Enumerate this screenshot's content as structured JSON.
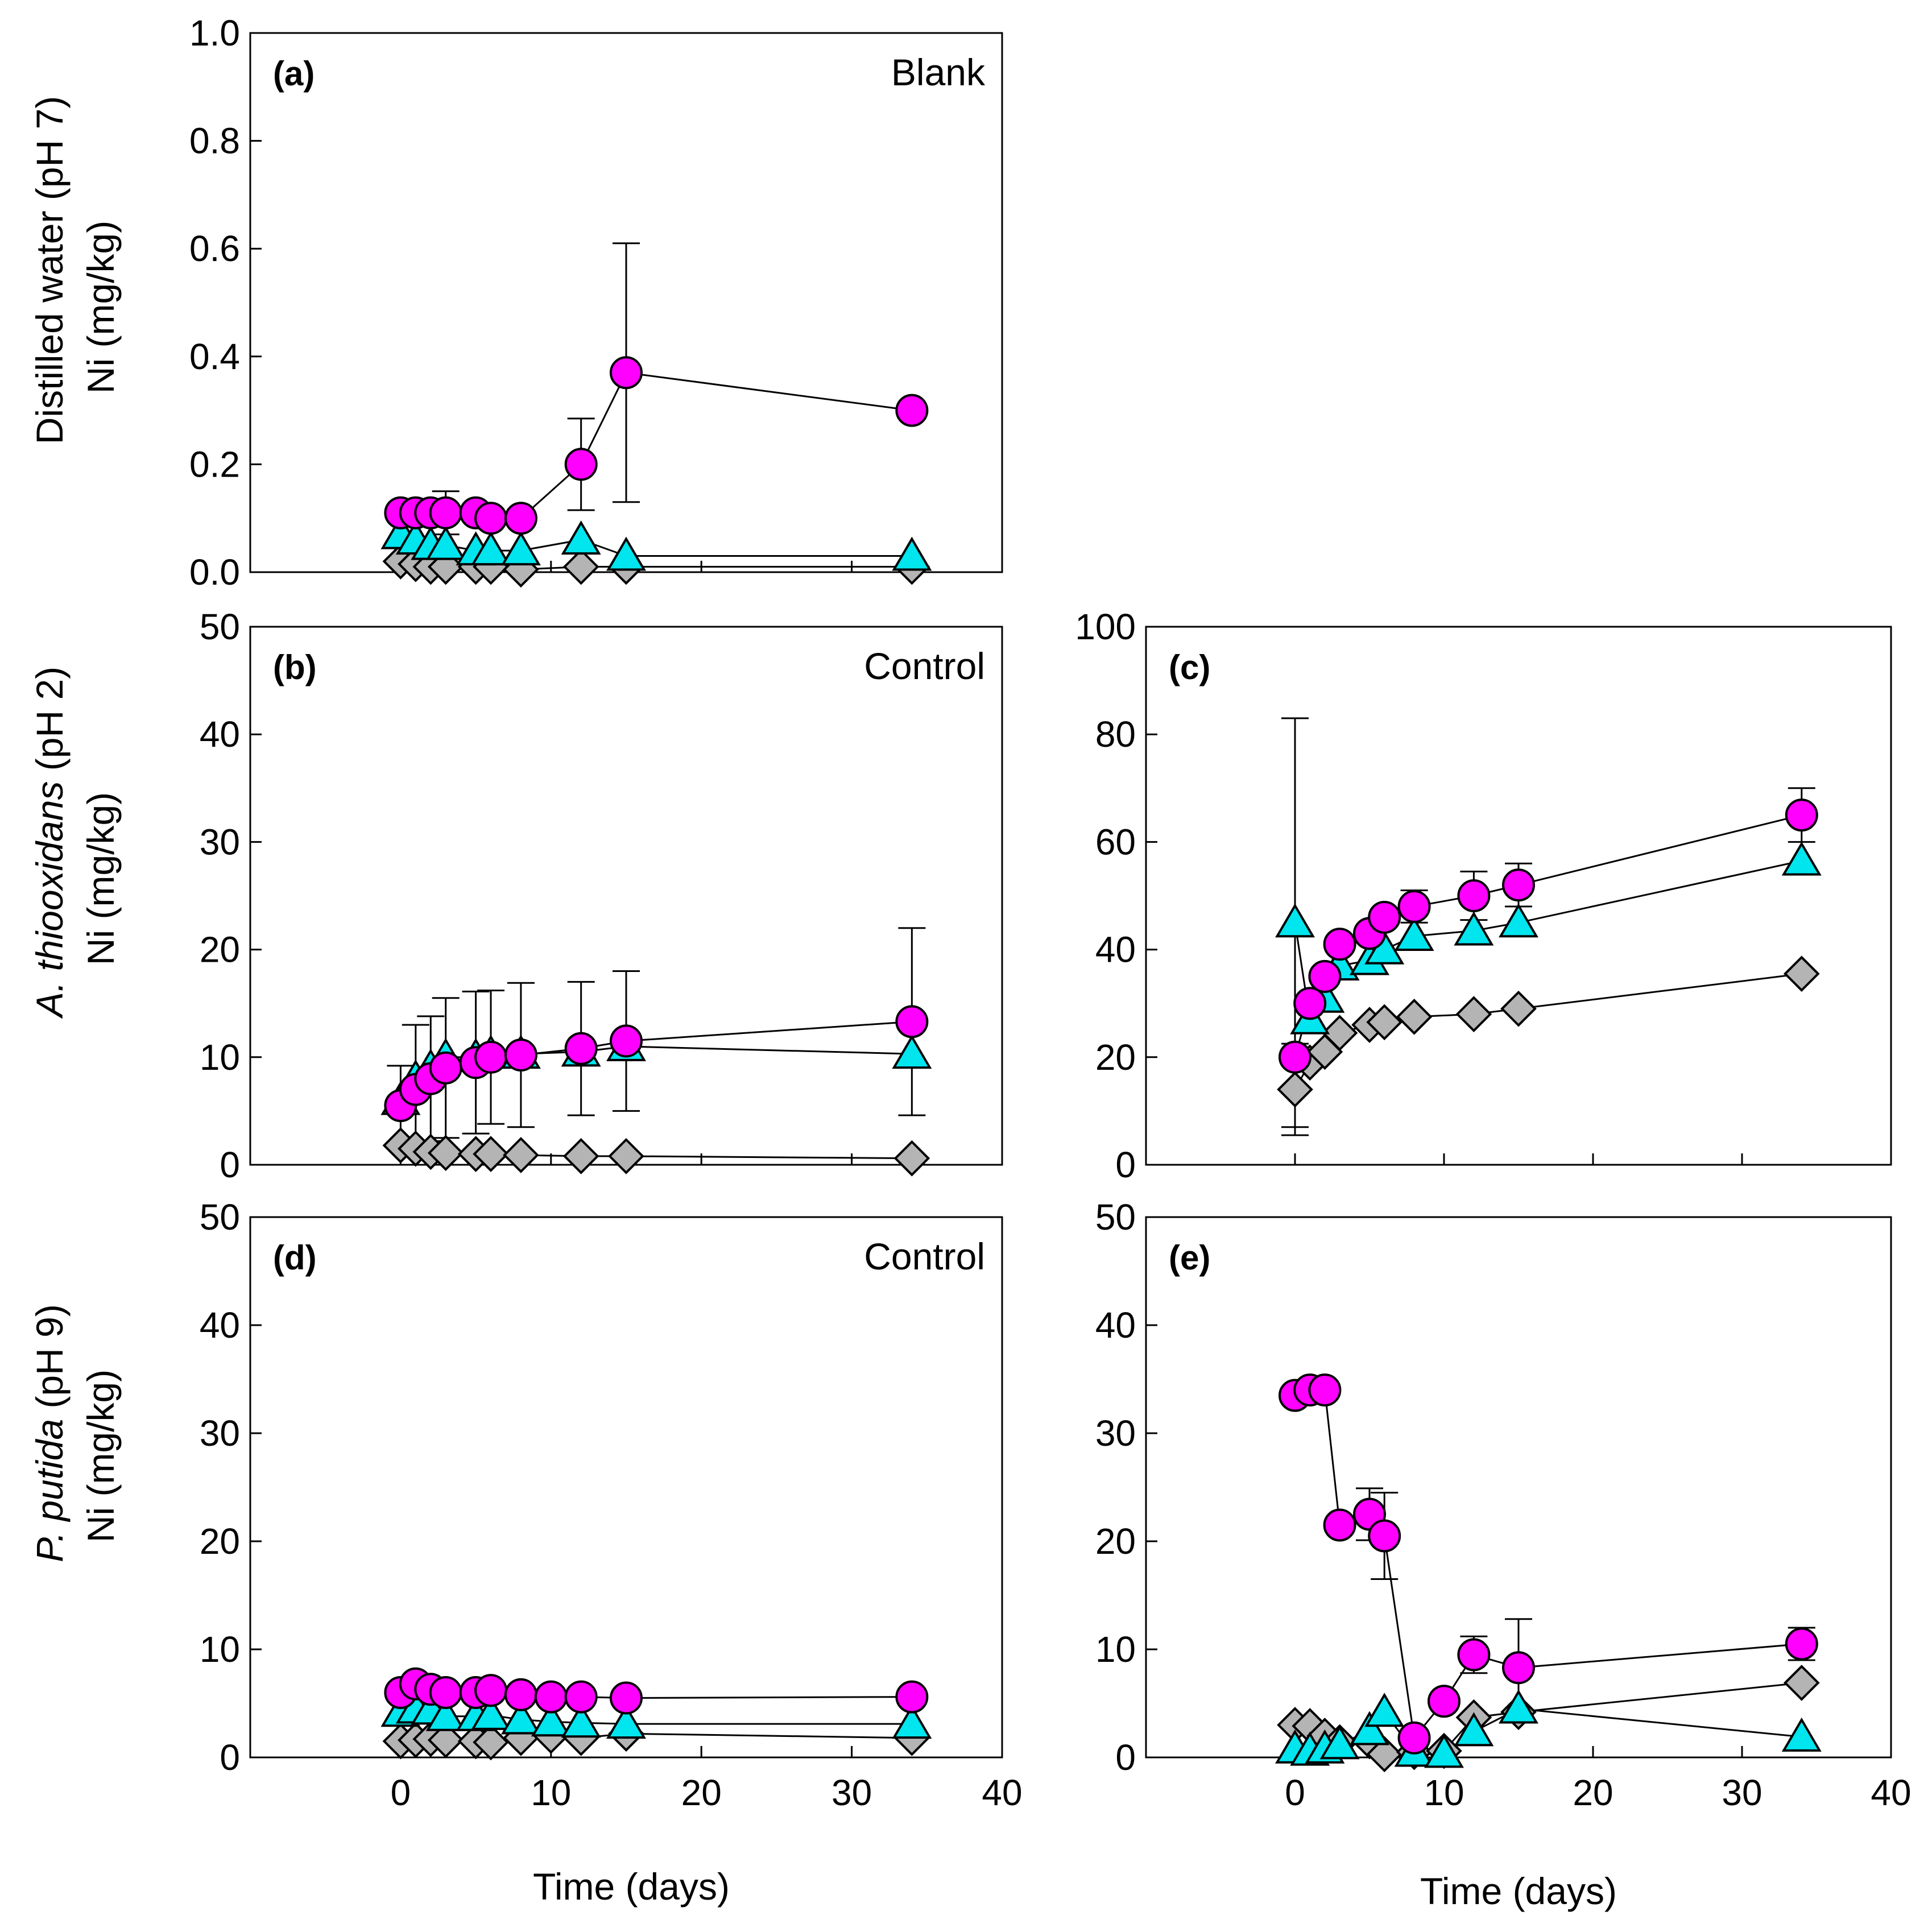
{
  "figure": {
    "x_axis_title": "Time (days)",
    "rows": [
      {
        "row": 0,
        "condition": "Distilled water (pH 7)",
        "species": "",
        "species_rest": "",
        "unit": "Ni (mg/kg)"
      },
      {
        "row": 1,
        "condition": "",
        "species": "A. thiooxidans",
        "species_rest": " (pH 2)",
        "unit": "Ni (mg/kg)"
      },
      {
        "row": 2,
        "condition": "",
        "species": "P. putida",
        "species_rest": " (pH 9)",
        "unit": "Ni (mg/kg)"
      }
    ]
  },
  "colors": {
    "magenta": "#ff00ff",
    "cyan": "#00e5ee",
    "gray": "#b4b4b4",
    "edge": "#000000"
  },
  "chart_data": [
    {
      "id": "a",
      "type": "scatter",
      "title": "(a)",
      "note": "Blank",
      "row": 0,
      "col": 0,
      "show_x_ticks": false,
      "x_title": false,
      "xlim": [
        -10,
        40
      ],
      "xticks": [
        0,
        10,
        20,
        30,
        40
      ],
      "ylim": [
        0,
        1.0
      ],
      "yticks": [
        0.0,
        0.2,
        0.4,
        0.6,
        0.8,
        1.0
      ],
      "ytick_labels": [
        "0.0",
        "0.2",
        "0.4",
        "0.6",
        "0.8",
        "1.0"
      ],
      "series": [
        {
          "name": "magenta-circle",
          "marker": "circle",
          "color": "magenta",
          "x": [
            0,
            1,
            2,
            3,
            5,
            6,
            8,
            12,
            15,
            34
          ],
          "y": [
            0.11,
            0.11,
            0.11,
            0.11,
            0.11,
            0.1,
            0.1,
            0.2,
            0.37,
            0.3
          ],
          "err": [
            0,
            0,
            0,
            0.04,
            0,
            0,
            0,
            0.085,
            0.24,
            0
          ]
        },
        {
          "name": "cyan-triangle",
          "marker": "triangle",
          "color": "cyan",
          "x": [
            0,
            1,
            2,
            3,
            5,
            6,
            8,
            12,
            15,
            34
          ],
          "y": [
            0.07,
            0.06,
            0.05,
            0.05,
            0.04,
            0.04,
            0.04,
            0.06,
            0.03,
            0.03
          ],
          "err": [
            0,
            0,
            0,
            0,
            0,
            0,
            0,
            0,
            0,
            0
          ]
        },
        {
          "name": "gray-diamond",
          "marker": "diamond",
          "color": "gray",
          "x": [
            0,
            1,
            2,
            3,
            5,
            6,
            8,
            12,
            15,
            34
          ],
          "y": [
            0.02,
            0.015,
            0.01,
            0.01,
            0.01,
            0.01,
            0.005,
            0.01,
            0.01,
            0.01
          ],
          "err": [
            0,
            0,
            0,
            0,
            0,
            0,
            0,
            0,
            0,
            0
          ]
        }
      ]
    },
    {
      "id": "b",
      "type": "scatter",
      "title": "(b)",
      "note": "Control",
      "row": 1,
      "col": 0,
      "show_x_ticks": false,
      "x_title": false,
      "xlim": [
        -10,
        40
      ],
      "xticks": [
        0,
        10,
        20,
        30,
        40
      ],
      "ylim": [
        0,
        50
      ],
      "yticks": [
        0,
        10,
        20,
        30,
        40,
        50
      ],
      "ytick_labels": [
        "0",
        "10",
        "20",
        "30",
        "40",
        "50"
      ],
      "series": [
        {
          "name": "magenta-circle",
          "marker": "circle",
          "color": "magenta",
          "x": [
            0,
            1,
            2,
            3,
            5,
            6,
            8,
            12,
            15,
            34
          ],
          "y": [
            5.5,
            7.0,
            8.0,
            9.0,
            9.5,
            10.0,
            10.2,
            10.8,
            11.5,
            13.3
          ],
          "err": [
            3.7,
            6.0,
            5.8,
            6.5,
            6.6,
            6.2,
            6.7,
            6.2,
            6.5,
            8.7
          ]
        },
        {
          "name": "cyan-triangle",
          "marker": "triangle",
          "color": "cyan",
          "x": [
            0,
            1,
            2,
            3,
            5,
            6,
            8,
            12,
            15,
            34
          ],
          "y": [
            6.0,
            8.0,
            9.0,
            10.0,
            10.0,
            10.3,
            10.3,
            10.5,
            11.0,
            10.3
          ],
          "err": [
            0,
            0,
            0,
            0,
            0,
            0,
            0,
            0,
            0,
            0
          ]
        },
        {
          "name": "gray-diamond",
          "marker": "diamond",
          "color": "gray",
          "x": [
            0,
            1,
            2,
            3,
            5,
            6,
            8,
            12,
            15,
            34
          ],
          "y": [
            1.8,
            1.5,
            1.2,
            1.1,
            1.0,
            1.0,
            0.9,
            0.8,
            0.8,
            0.6
          ],
          "err": [
            0,
            0,
            0,
            0,
            0,
            0,
            0,
            0,
            0,
            0
          ]
        }
      ]
    },
    {
      "id": "c",
      "type": "scatter",
      "title": "(c)",
      "note": "",
      "row": 1,
      "col": 1,
      "show_x_ticks": false,
      "x_title": false,
      "xlim": [
        -10,
        40
      ],
      "xticks": [
        0,
        10,
        20,
        30,
        40
      ],
      "ylim": [
        0,
        100
      ],
      "yticks": [
        0,
        20,
        40,
        60,
        80,
        100
      ],
      "ytick_labels": [
        "0",
        "20",
        "40",
        "60",
        "80",
        "100"
      ],
      "series": [
        {
          "name": "magenta-circle",
          "marker": "circle",
          "color": "magenta",
          "x": [
            0,
            1,
            2,
            3,
            5,
            6,
            8,
            12,
            15,
            34
          ],
          "y": [
            20,
            30,
            35,
            41,
            43,
            46,
            48,
            50,
            52,
            65
          ],
          "err": [
            0,
            0,
            0,
            0,
            0,
            0,
            3,
            4.5,
            4,
            5
          ]
        },
        {
          "name": "cyan-triangle",
          "marker": "triangle",
          "color": "cyan",
          "x": [
            0,
            1,
            2,
            3,
            5,
            6,
            8,
            12,
            15,
            34
          ],
          "y": [
            45,
            27,
            31,
            37,
            38,
            40,
            42.5,
            43.5,
            45,
            56.5
          ],
          "err": [
            38,
            0,
            0,
            0,
            0,
            0,
            0,
            0,
            0,
            0
          ]
        },
        {
          "name": "gray-diamond",
          "marker": "diamond",
          "color": "gray",
          "x": [
            0,
            1,
            2,
            3,
            5,
            6,
            8,
            12,
            15,
            34
          ],
          "y": [
            14,
            19,
            21,
            24.5,
            26,
            26.5,
            27.5,
            28,
            29,
            35.5
          ],
          "err": [
            8.5,
            0,
            0,
            0,
            0,
            0,
            0,
            0,
            0,
            0
          ]
        }
      ]
    },
    {
      "id": "d",
      "type": "scatter",
      "title": "(d)",
      "note": "Control",
      "row": 2,
      "col": 0,
      "show_x_ticks": true,
      "x_title": true,
      "xlim": [
        -10,
        40
      ],
      "xticks": [
        0,
        10,
        20,
        30,
        40
      ],
      "xtick_labels": [
        "0",
        "10",
        "20",
        "30",
        "40"
      ],
      "ylim": [
        0,
        50
      ],
      "yticks": [
        0,
        10,
        20,
        30,
        40,
        50
      ],
      "ytick_labels": [
        "0",
        "10",
        "20",
        "30",
        "40",
        "50"
      ],
      "series": [
        {
          "name": "magenta-circle",
          "marker": "circle",
          "color": "magenta",
          "x": [
            0,
            1,
            2,
            3,
            5,
            6,
            8,
            10,
            12,
            15,
            34
          ],
          "y": [
            6.0,
            6.8,
            6.3,
            6.0,
            6.0,
            6.2,
            5.8,
            5.6,
            5.6,
            5.5,
            5.6
          ],
          "err": [
            0,
            0,
            0,
            0,
            0,
            0,
            0,
            0,
            0,
            0,
            0
          ]
        },
        {
          "name": "cyan-triangle",
          "marker": "triangle",
          "color": "cyan",
          "x": [
            0,
            1,
            2,
            3,
            5,
            6,
            8,
            10,
            12,
            15,
            34
          ],
          "y": [
            4.2,
            4.5,
            4.4,
            3.8,
            3.8,
            3.9,
            3.5,
            3.3,
            3.2,
            3.1,
            3.1
          ],
          "err": [
            0,
            0,
            0,
            0,
            0,
            0,
            0,
            0,
            0,
            0,
            0
          ]
        },
        {
          "name": "gray-diamond",
          "marker": "diamond",
          "color": "gray",
          "x": [
            0,
            1,
            2,
            3,
            5,
            6,
            8,
            10,
            12,
            15,
            34
          ],
          "y": [
            1.5,
            1.6,
            1.7,
            1.6,
            1.5,
            1.4,
            1.8,
            2.0,
            1.8,
            2.2,
            1.8
          ],
          "err": [
            0,
            0,
            0,
            0,
            0,
            0,
            0,
            0,
            0,
            0,
            0
          ]
        }
      ]
    },
    {
      "id": "e",
      "type": "scatter",
      "title": "(e)",
      "note": "",
      "row": 2,
      "col": 1,
      "show_x_ticks": true,
      "x_title": true,
      "xlim": [
        -10,
        40
      ],
      "xticks": [
        0,
        10,
        20,
        30,
        40
      ],
      "xtick_labels": [
        "0",
        "10",
        "20",
        "30",
        "40"
      ],
      "ylim": [
        0,
        50
      ],
      "yticks": [
        0,
        10,
        20,
        30,
        40,
        50
      ],
      "ytick_labels": [
        "0",
        "10",
        "20",
        "30",
        "40",
        "50"
      ],
      "series": [
        {
          "name": "magenta-circle",
          "marker": "circle",
          "color": "magenta",
          "x": [
            0,
            1,
            2,
            3,
            5,
            6,
            8,
            10,
            12,
            15,
            34
          ],
          "y": [
            33.5,
            34,
            34,
            21.5,
            22.5,
            20.5,
            1.8,
            5.2,
            9.5,
            8.3,
            10.5
          ],
          "err": [
            0,
            0,
            0,
            0,
            2.4,
            4.0,
            0,
            0,
            1.7,
            4.5,
            1.5
          ]
        },
        {
          "name": "cyan-triangle",
          "marker": "triangle",
          "color": "cyan",
          "x": [
            0,
            1,
            2,
            3,
            5,
            6,
            8,
            10,
            12,
            15,
            34
          ],
          "y": [
            0.8,
            0.6,
            0.8,
            1.2,
            2.5,
            4.2,
            0.5,
            0.4,
            2.4,
            4.5,
            1.9
          ],
          "err": [
            0,
            0,
            0,
            0,
            0,
            0,
            0,
            0,
            0,
            0,
            0
          ]
        },
        {
          "name": "gray-diamond",
          "marker": "diamond",
          "color": "gray",
          "x": [
            0,
            1,
            2,
            3,
            5,
            6,
            8,
            10,
            12,
            15,
            34
          ],
          "y": [
            3.0,
            2.9,
            2.0,
            1.4,
            1.5,
            0.3,
            0.5,
            0.6,
            3.7,
            4.2,
            6.9
          ],
          "err": [
            0,
            0,
            0,
            0,
            0,
            0,
            0,
            0,
            0,
            0,
            0
          ]
        }
      ]
    }
  ]
}
